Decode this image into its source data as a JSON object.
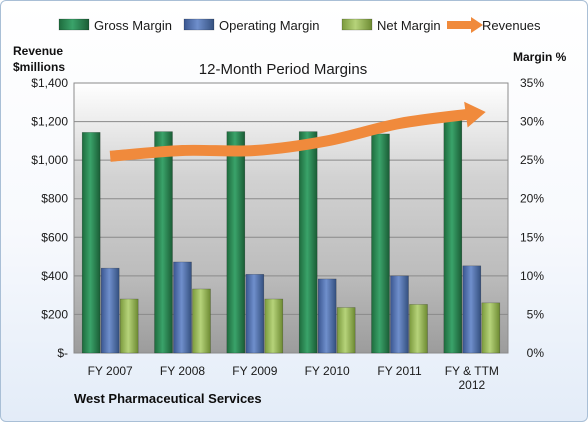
{
  "chart_data": {
    "type": "bar",
    "title": "12-Month Period Margins",
    "company": "West Pharmaceutical Services",
    "y_left_label": [
      "Revenue",
      "$millions"
    ],
    "y_right_label": "Margin %",
    "categories": [
      [
        "FY 2007"
      ],
      [
        "FY 2008"
      ],
      [
        "FY 2009"
      ],
      [
        "FY 2010"
      ],
      [
        "FY 2011"
      ],
      [
        "FY & TTM",
        "2012"
      ]
    ],
    "left_axis": {
      "min": 0,
      "max": 1400,
      "step": 200,
      "tick_labels": [
        "$-",
        "$200",
        "$400",
        "$600",
        "$800",
        "$1,000",
        "$1,200",
        "$1,400"
      ]
    },
    "right_axis": {
      "min": 0,
      "max": 35,
      "step": 5,
      "tick_labels": [
        "0%",
        "5%",
        "10%",
        "15%",
        "20%",
        "25%",
        "30%",
        "35%"
      ]
    },
    "grid": true,
    "legend_position": "top",
    "series": [
      {
        "name": "Gross Margin",
        "type": "bar",
        "axis": "right",
        "color": "#2e8b57",
        "values": [
          28.6,
          28.7,
          28.7,
          28.7,
          28.4,
          30.5
        ]
      },
      {
        "name": "Operating Margin",
        "type": "bar",
        "axis": "right",
        "color": "#4f6fae",
        "values": [
          11.0,
          11.8,
          10.2,
          9.6,
          10.0,
          11.3
        ]
      },
      {
        "name": "Net Margin",
        "type": "bar",
        "axis": "right",
        "color": "#9bbb59",
        "values": [
          7.0,
          8.3,
          7.0,
          5.9,
          6.3,
          6.5
        ]
      },
      {
        "name": "Revenues",
        "type": "line",
        "axis": "left",
        "color": "#f08a3c",
        "values": [
          1020,
          1050,
          1050,
          1100,
          1190,
          1240
        ]
      }
    ]
  }
}
